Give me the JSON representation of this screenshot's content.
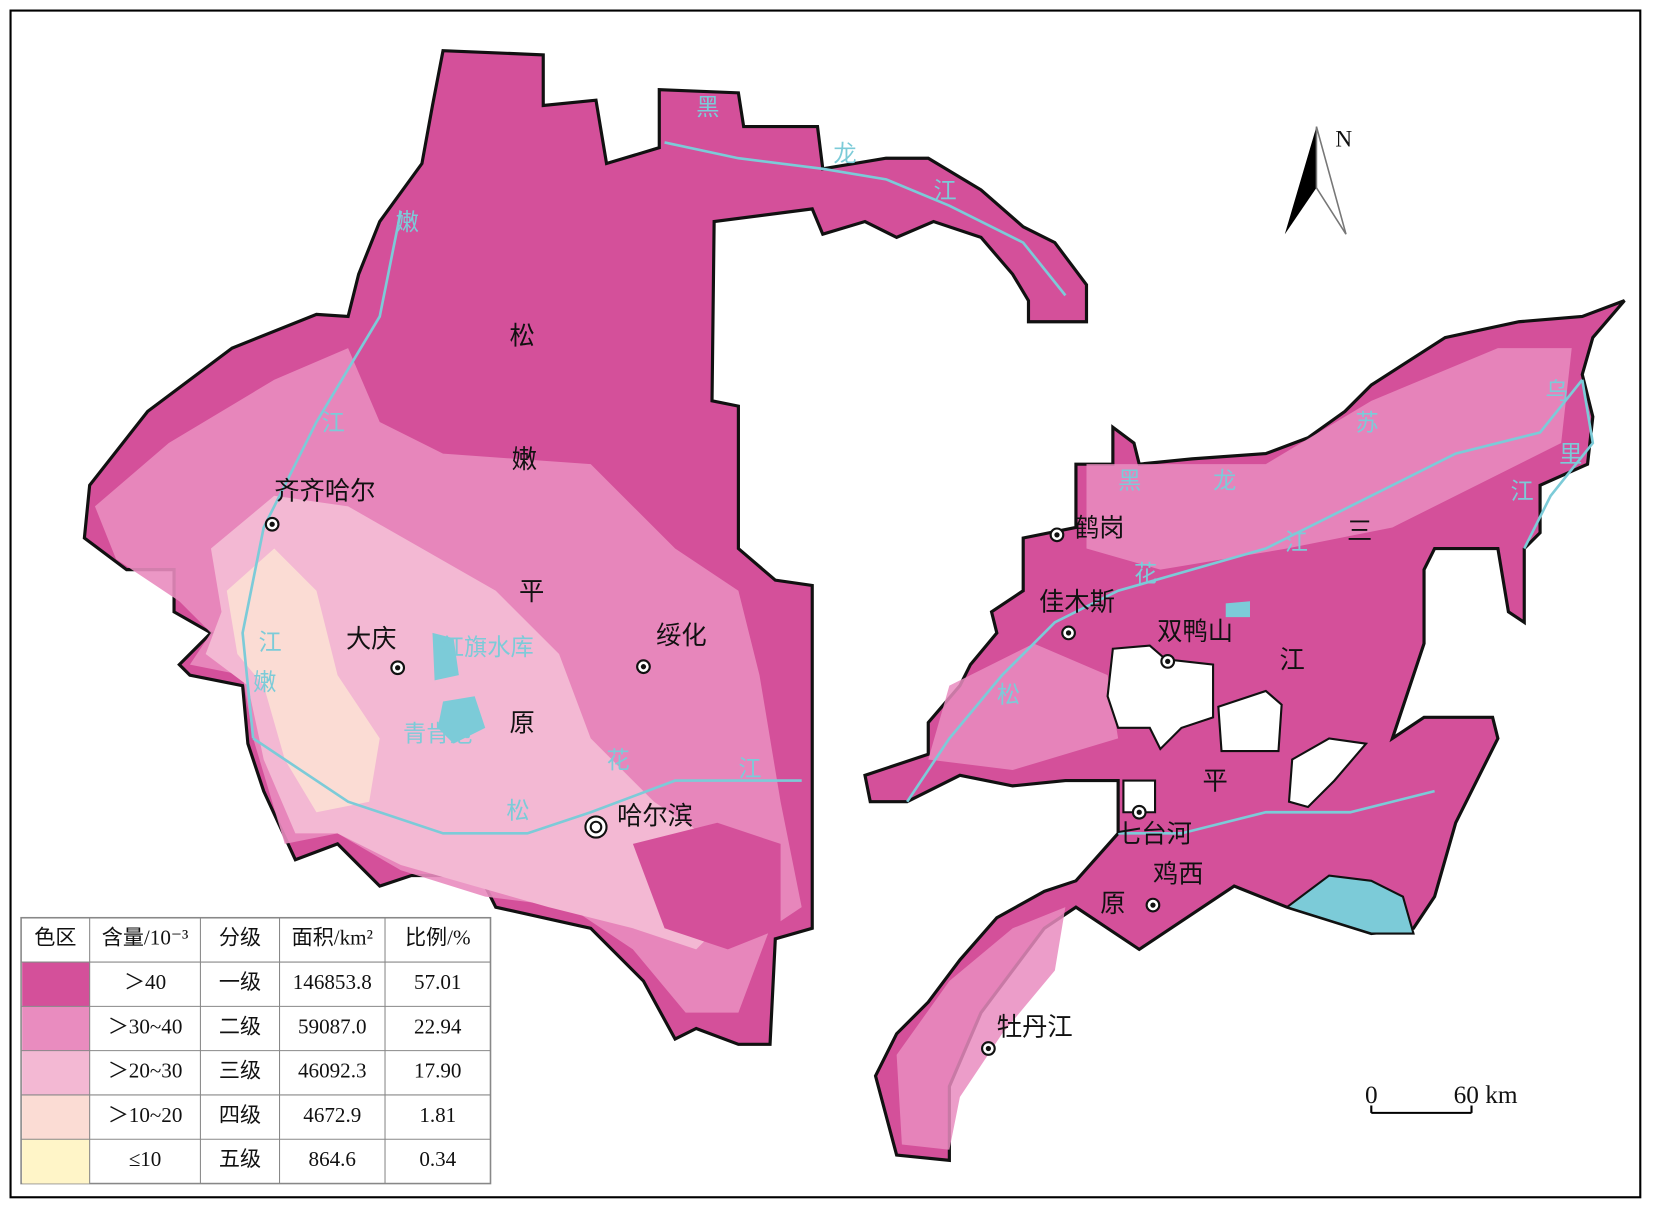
{
  "map": {
    "cities": [
      "齐齐哈尔",
      "大庆",
      "绥化",
      "哈尔滨",
      "鹤岗",
      "佳木斯",
      "双鸭山",
      "七台河",
      "鸡西",
      "牡丹江"
    ],
    "region_labels": [
      "松",
      "嫩",
      "平",
      "原",
      "三",
      "江",
      "平",
      "原"
    ],
    "water_labels": [
      "黑",
      "龙",
      "江",
      "嫩",
      "江",
      "嫩",
      "江",
      "红旗水库",
      "青肯泡",
      "松",
      "花",
      "江",
      "黑",
      "龙",
      "江",
      "花",
      "松",
      "乌",
      "苏",
      "里",
      "江"
    ],
    "north": "N",
    "scale": [
      "0",
      "60 km"
    ]
  },
  "legend": {
    "header": [
      "色区",
      "含量/10⁻³",
      "分级",
      "面积/km²",
      "比例/%"
    ],
    "rows": [
      {
        "color": "#d4509a",
        "range": "＞40",
        "grade": "一级",
        "area": "146853.8",
        "percent": "57.01"
      },
      {
        "color": "#e98cbf",
        "range": "＞30~40",
        "grade": "二级",
        "area": "59087.0",
        "percent": "22.94"
      },
      {
        "color": "#f3b8d3",
        "range": "＞20~30",
        "grade": "三级",
        "area": "46092.3",
        "percent": "17.90"
      },
      {
        "color": "#fbdcd4",
        "range": "＞10~20",
        "grade": "四级",
        "area": "4672.9",
        "percent": "1.81"
      },
      {
        "color": "#fff5c8",
        "range": "≤10",
        "grade": "五级",
        "area": "864.6",
        "percent": "0.34"
      }
    ]
  }
}
